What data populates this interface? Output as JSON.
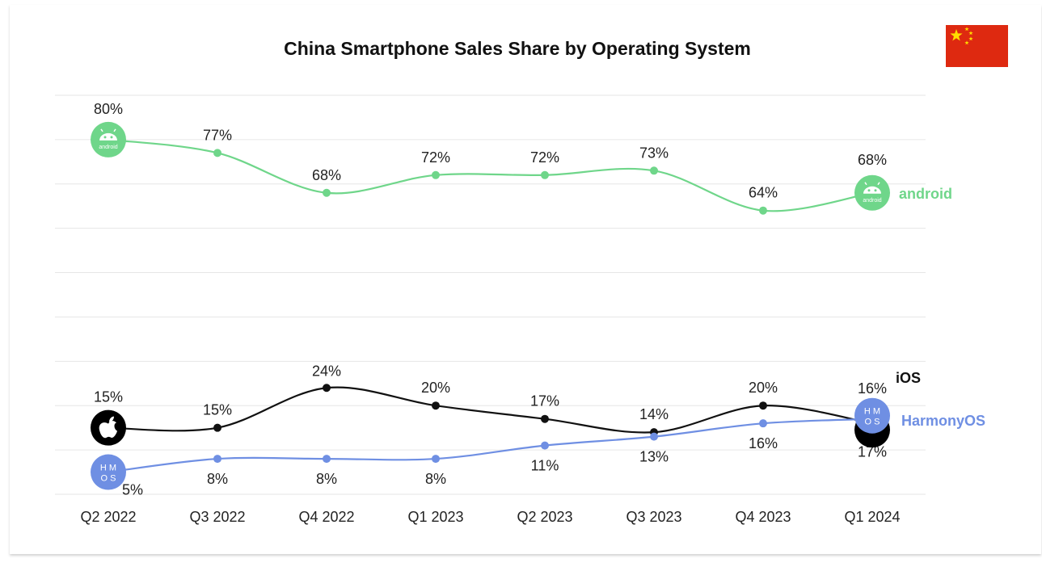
{
  "chart_data": {
    "type": "line",
    "title": "China Smartphone Sales Share by Operating System",
    "categories": [
      "Q2 2022",
      "Q3 2022",
      "Q4 2022",
      "Q1 2023",
      "Q2 2023",
      "Q3 2023",
      "Q4 2023",
      "Q1 2024"
    ],
    "series": [
      {
        "name": "android",
        "color": "#6fd68a",
        "icon": "android-icon",
        "values": [
          80,
          77,
          68,
          72,
          72,
          73,
          64,
          68
        ],
        "labels": [
          "80%",
          "77%",
          "68%",
          "72%",
          "72%",
          "73%",
          "64%",
          "68%"
        ]
      },
      {
        "name": "iOS",
        "color": "#111111",
        "icon": "apple-icon",
        "values": [
          15,
          15,
          24,
          20,
          17,
          14,
          20,
          16
        ],
        "labels": [
          "15%",
          "15%",
          "24%",
          "20%",
          "17%",
          "14%",
          "20%",
          "16%"
        ]
      },
      {
        "name": "HarmonyOS",
        "color": "#6f8fe3",
        "icon": "harmonyos-icon",
        "values": [
          5,
          8,
          8,
          8,
          11,
          13,
          16,
          17
        ],
        "labels": [
          "5%",
          "8%",
          "8%",
          "8%",
          "11%",
          "13%",
          "16%",
          "17%"
        ]
      }
    ],
    "ylim": [
      0,
      90
    ],
    "grid": true,
    "legend": "right"
  },
  "icon_texts": {
    "android": "android",
    "harmonyos_top": "H M",
    "harmonyos_bottom": "O S"
  },
  "flag": {
    "name": "china-flag-icon",
    "color": "#de2910",
    "star_color": "#ffde00"
  }
}
